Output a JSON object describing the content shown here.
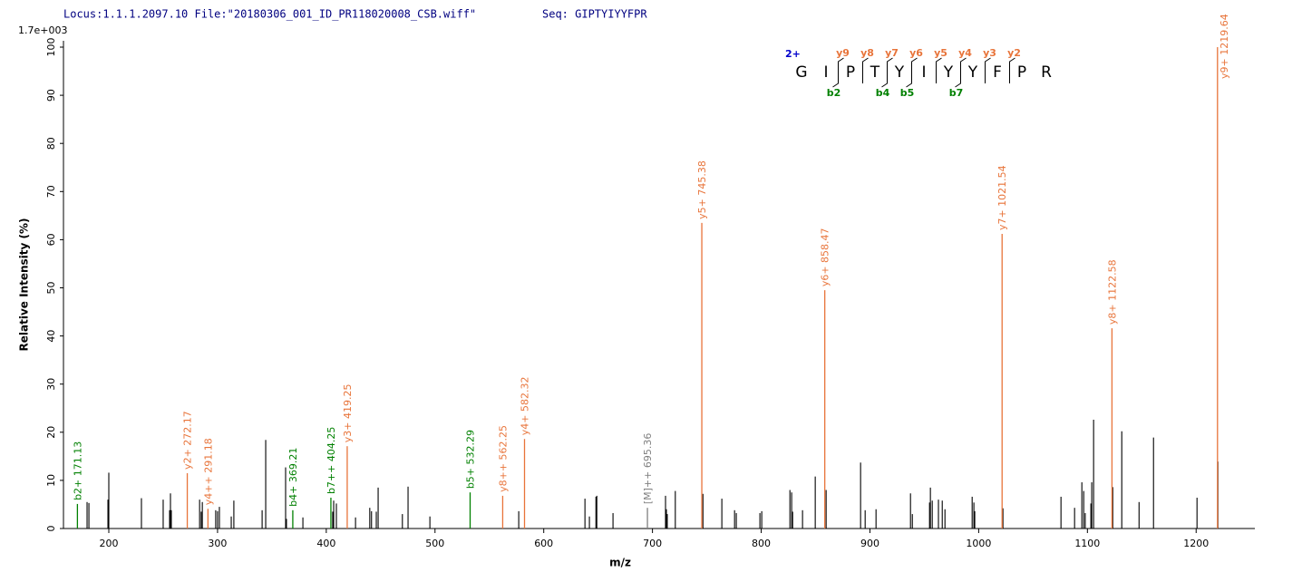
{
  "header": {
    "locus": "Locus:1.1.1.2097.10 File:\"20180306_001_ID_PR118020008_CSB.wiff\"",
    "seq": "Seq: GIPTYIYYFPR"
  },
  "chart_data": {
    "type": "stem",
    "scale_label": "1.7e+003",
    "xlabel": "m/z",
    "ylabel": "Relative   Intensity (%)",
    "xlim": [
      158.3,
      1254
    ],
    "ylim": [
      0,
      100
    ],
    "xticks": [
      200,
      300,
      400,
      500,
      600,
      700,
      800,
      900,
      1000,
      1100,
      1200
    ],
    "yticks": [
      0,
      10,
      20,
      30,
      40,
      50,
      60,
      70,
      80,
      90,
      100
    ],
    "series": [
      {
        "color": "#000000",
        "x": [
          180,
          181.7,
          199.2,
          200,
          230,
          250,
          255.9,
          256.7,
          257.5,
          283.5,
          285,
          286,
          298.3,
          300,
          301.7,
          312.6,
          315,
          341,
          344.3,
          362.6,
          363.4,
          378.5,
          405.9,
          406.8,
          409.3,
          426.9,
          440,
          441.6,
          446,
          447.7,
          470,
          475.2,
          495.3,
          577,
          637.9,
          642,
          648,
          648.8,
          663.7,
          712,
          712.8,
          713.6,
          721,
          746.4,
          763.8,
          775.5,
          777.1,
          798.8,
          800.5,
          826.4,
          828,
          828.9,
          838,
          849.7,
          859.7,
          891.4,
          895.6,
          905.6,
          937.3,
          939,
          954.8,
          955.6,
          957.3,
          963,
          966.5,
          969,
          994,
          995.6,
          996.4,
          1022.3,
          1075.7,
          1088.2,
          1094.9,
          1096.6,
          1098,
          1103.2,
          1104,
          1105.7,
          1123.3,
          1131.6,
          1147.5,
          1160.8,
          1200.8,
          1220
        ],
        "values": [
          5.5,
          5.3,
          6,
          11.6,
          6.3,
          6,
          3.8,
          7.3,
          3.8,
          6,
          3.5,
          5.5,
          3.8,
          3.6,
          4.5,
          2.5,
          5.8,
          3.8,
          18.4,
          12.7,
          2,
          2.3,
          3.5,
          5.8,
          5.2,
          2.3,
          4.3,
          3.6,
          3.5,
          8.5,
          3,
          8.7,
          2.5,
          3.6,
          6.2,
          2.5,
          6.6,
          6.8,
          3.2,
          6.8,
          4,
          3,
          7.8,
          7.2,
          6.2,
          3.8,
          3.2,
          3.2,
          3.6,
          8,
          7.5,
          3.5,
          3.8,
          10.8,
          8,
          13.7,
          3.8,
          4,
          7.3,
          3,
          5.4,
          8.5,
          5.8,
          6,
          5.8,
          4,
          6.6,
          5.4,
          3.6,
          4.2,
          6.6,
          4.3,
          9.6,
          7.8,
          3.2,
          5.2,
          9.6,
          22.6,
          8.6,
          20.2,
          5.5,
          18.9,
          6.4,
          13.9
        ]
      },
      {
        "color": "#e8743a",
        "x": [
          272.17,
          291.18,
          419.25,
          562.25,
          582.32,
          745.38,
          858.47,
          1021.54,
          1122.58,
          1219.64
        ],
        "values": [
          11.5,
          4.1,
          17.1,
          6.8,
          18.6,
          63.5,
          49.5,
          61.2,
          41.6,
          100
        ],
        "labels": [
          "y2+ 272.17",
          "y4++ 291.18",
          "y3+ 419.25",
          "y8++ 562.25",
          "y4+ 582.32",
          "y5+ 745.38",
          "y6+ 858.47",
          "y7+ 1021.54",
          "y8+ 1122.58",
          "y9+ 1219.64"
        ]
      },
      {
        "color": "#008000",
        "x": [
          171.13,
          369.21,
          404.25,
          532.29
        ],
        "values": [
          5.1,
          3.8,
          6.4,
          7.5
        ],
        "labels": [
          "b2+ 171.13",
          "b4+ 369.21",
          "b7++ 404.25",
          "b5+ 532.29"
        ]
      },
      {
        "color": "#808080",
        "x": [
          695.36
        ],
        "values": [
          4.3
        ],
        "labels": [
          "[M]++ 695.36"
        ]
      }
    ]
  },
  "sequence": {
    "charge": "2+",
    "residues": [
      "G",
      "I",
      "P",
      "T",
      "Y",
      "I",
      "Y",
      "Y",
      "F",
      "P",
      "R"
    ],
    "y_ions": [
      "y9",
      "y8",
      "y7",
      "y6",
      "y5",
      "y4",
      "y3",
      "y2"
    ],
    "b_ions": [
      "b2",
      "b4",
      "b5",
      "b7"
    ]
  }
}
